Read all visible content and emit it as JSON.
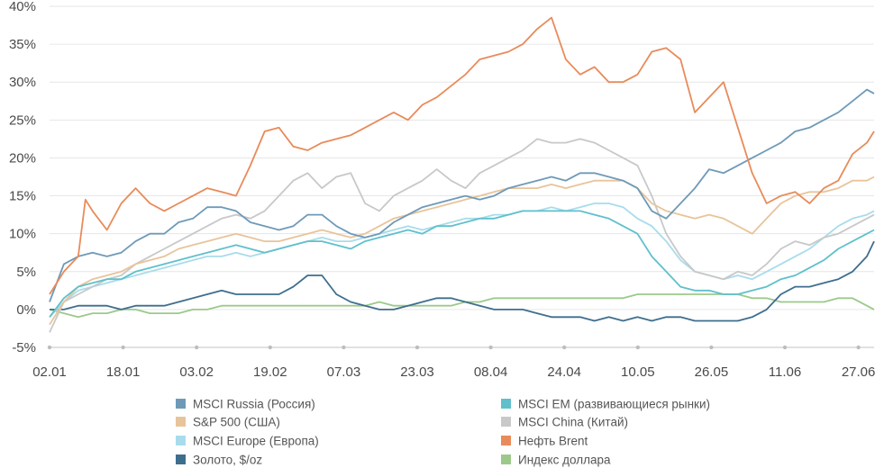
{
  "chart_data": {
    "type": "line",
    "title": "",
    "xlabel": "",
    "ylabel": "",
    "ylim": [
      -5,
      40
    ],
    "y_ticks": [
      -5,
      0,
      5,
      10,
      15,
      20,
      25,
      30,
      35,
      40
    ],
    "y_tick_labels": [
      "-5%",
      "0%",
      "5%",
      "10%",
      "15%",
      "20%",
      "25%",
      "30%",
      "35%",
      "40%"
    ],
    "x_range": [
      0,
      115
    ],
    "x_tick_labels": [
      "02.01",
      "18.01",
      "03.02",
      "19.02",
      "07.03",
      "23.03",
      "08.04",
      "24.04",
      "10.05",
      "26.05",
      "11.06",
      "27.06"
    ],
    "grid": true,
    "legend_position": "bottom",
    "series": [
      {
        "name": "MSCI Russia (Россия)",
        "color": "#6e9ab8",
        "x": [
          0,
          2,
          4,
          6,
          8,
          10,
          12,
          14,
          16,
          18,
          20,
          22,
          24,
          26,
          28,
          30,
          32,
          34,
          36,
          38,
          40,
          42,
          44,
          46,
          48,
          50,
          52,
          54,
          56,
          58,
          60,
          62,
          64,
          66,
          68,
          70,
          72,
          74,
          76,
          78,
          80,
          82,
          84,
          86,
          88,
          90,
          92,
          94,
          96,
          98,
          100,
          102,
          104,
          106,
          108,
          110,
          112,
          114,
          115
        ],
        "values": [
          1,
          6,
          7,
          7.5,
          7,
          7.5,
          9,
          10,
          10,
          11.5,
          12,
          13.5,
          13.5,
          13,
          11.5,
          11,
          10.5,
          11,
          12.5,
          12.5,
          11,
          10,
          9.5,
          10,
          11.5,
          12.5,
          13.5,
          14,
          14.5,
          15,
          14.5,
          15,
          16,
          16.5,
          17,
          17.5,
          17,
          18,
          18,
          17.5,
          17,
          16,
          13,
          12,
          14,
          16,
          18.5,
          18,
          19,
          20,
          21,
          22,
          23.5,
          24,
          25,
          26,
          27.5,
          29,
          28.5
        ]
      },
      {
        "name": "MSCI EM (развивающиеся рынки)",
        "color": "#5fc0cc",
        "x": [
          0,
          2,
          4,
          6,
          8,
          10,
          12,
          14,
          16,
          18,
          20,
          22,
          24,
          26,
          28,
          30,
          32,
          34,
          36,
          38,
          40,
          42,
          44,
          46,
          48,
          50,
          52,
          54,
          56,
          58,
          60,
          62,
          64,
          66,
          68,
          70,
          72,
          74,
          76,
          78,
          80,
          82,
          84,
          86,
          88,
          90,
          92,
          94,
          96,
          98,
          100,
          102,
          104,
          106,
          108,
          110,
          112,
          114,
          115
        ],
        "values": [
          -1,
          1.5,
          3,
          3.5,
          4,
          4,
          5,
          5.5,
          6,
          6.5,
          7,
          7.5,
          8,
          8.5,
          8,
          7.5,
          8,
          8.5,
          9,
          9,
          8.5,
          8,
          9,
          9.5,
          10,
          10.5,
          10,
          11,
          11,
          11.5,
          12,
          12,
          12.5,
          13,
          13,
          13,
          13,
          13,
          12.5,
          12,
          11,
          10,
          7,
          5,
          3,
          2.5,
          2.5,
          2,
          2,
          2.5,
          3,
          4,
          4.5,
          5.5,
          6.5,
          8,
          9,
          10,
          10.5
        ]
      },
      {
        "name": "S&P 500 (США)",
        "color": "#e8c49a",
        "x": [
          0,
          2,
          4,
          6,
          8,
          10,
          12,
          14,
          16,
          18,
          20,
          22,
          24,
          26,
          28,
          30,
          32,
          34,
          36,
          38,
          40,
          42,
          44,
          46,
          48,
          50,
          52,
          54,
          56,
          58,
          60,
          62,
          64,
          66,
          68,
          70,
          72,
          74,
          76,
          78,
          80,
          82,
          84,
          86,
          88,
          90,
          92,
          94,
          96,
          98,
          100,
          102,
          104,
          106,
          108,
          110,
          112,
          114,
          115
        ],
        "values": [
          -2,
          1,
          3,
          4,
          4.5,
          5,
          6,
          6.5,
          7,
          8,
          8.5,
          9,
          9.5,
          10,
          9.5,
          9,
          9,
          9.5,
          10,
          10.5,
          10,
          9.5,
          10,
          11,
          12,
          12.5,
          13,
          13.5,
          14,
          14.5,
          15,
          15.5,
          16,
          16,
          16,
          16.5,
          16,
          16.5,
          17,
          17,
          17,
          16,
          14,
          13,
          12.5,
          12,
          12.5,
          12,
          11,
          10,
          12,
          14,
          15,
          15.5,
          15.5,
          16,
          17,
          17,
          17.5
        ]
      },
      {
        "name": "MSCI China (Китай)",
        "color": "#c8c8c8",
        "x": [
          0,
          2,
          4,
          6,
          8,
          10,
          12,
          14,
          16,
          18,
          20,
          22,
          24,
          26,
          28,
          30,
          32,
          34,
          36,
          38,
          40,
          42,
          44,
          46,
          48,
          50,
          52,
          54,
          56,
          58,
          60,
          62,
          64,
          66,
          68,
          70,
          72,
          74,
          76,
          78,
          80,
          82,
          84,
          86,
          88,
          90,
          92,
          94,
          96,
          98,
          100,
          102,
          104,
          106,
          108,
          110,
          112,
          114,
          115
        ],
        "values": [
          -3,
          1,
          2,
          3,
          4,
          4.5,
          6,
          7,
          8,
          9,
          10,
          11,
          12,
          12.5,
          12,
          13,
          15,
          17,
          18,
          16,
          17.5,
          18,
          14,
          13,
          15,
          16,
          17,
          18.5,
          17,
          16,
          18,
          19,
          20,
          21,
          22.5,
          22,
          22,
          22.5,
          22,
          21,
          20,
          19,
          15,
          10,
          7,
          5,
          4.5,
          4,
          5,
          4.5,
          6,
          8,
          9,
          8.5,
          9.5,
          10,
          11,
          12,
          12.5
        ]
      },
      {
        "name": "MSCI Europe (Европа)",
        "color": "#a8dcec",
        "x": [
          0,
          2,
          4,
          6,
          8,
          10,
          12,
          14,
          16,
          18,
          20,
          22,
          24,
          26,
          28,
          30,
          32,
          34,
          36,
          38,
          40,
          42,
          44,
          46,
          48,
          50,
          52,
          54,
          56,
          58,
          60,
          62,
          64,
          66,
          68,
          70,
          72,
          74,
          76,
          78,
          80,
          82,
          84,
          86,
          88,
          90,
          92,
          94,
          96,
          98,
          100,
          102,
          104,
          106,
          108,
          110,
          112,
          114,
          115
        ],
        "values": [
          -1,
          1,
          2.5,
          3,
          3.5,
          4,
          4.5,
          5,
          5.5,
          6,
          6.5,
          7,
          7,
          7.5,
          7,
          7.5,
          8,
          8.5,
          9,
          9.5,
          9,
          9,
          9.5,
          10,
          10.5,
          11,
          10.5,
          11,
          11.5,
          12,
          12,
          12.5,
          12.5,
          13,
          13,
          13.5,
          13,
          13.5,
          14,
          14,
          13.5,
          12,
          11,
          9,
          6.5,
          5,
          4.5,
          4,
          4.5,
          4,
          5,
          6,
          7,
          8,
          9.5,
          11,
          12,
          12.5,
          13
        ]
      },
      {
        "name": "Нефть Brent",
        "color": "#e88b5a",
        "x": [
          0,
          2,
          4,
          5,
          6,
          8,
          10,
          12,
          14,
          16,
          18,
          20,
          22,
          24,
          26,
          28,
          30,
          32,
          34,
          36,
          38,
          40,
          42,
          44,
          46,
          48,
          50,
          52,
          54,
          56,
          58,
          60,
          62,
          64,
          66,
          68,
          70,
          72,
          74,
          76,
          78,
          80,
          82,
          84,
          86,
          88,
          90,
          92,
          94,
          96,
          98,
          100,
          102,
          104,
          106,
          108,
          110,
          112,
          114,
          115
        ],
        "values": [
          2,
          5,
          7,
          14.5,
          13,
          10.5,
          14,
          16,
          14,
          13,
          14,
          15,
          16,
          15.5,
          15,
          19,
          23.5,
          24,
          21.5,
          21,
          22,
          22.5,
          23,
          24,
          25,
          26,
          25,
          27,
          28,
          29.5,
          31,
          33,
          33.5,
          34,
          35,
          37,
          38.5,
          33,
          31,
          32,
          30,
          30,
          31,
          34,
          34.5,
          33,
          26,
          28,
          30,
          24,
          18,
          14,
          15,
          15.5,
          14,
          16,
          17,
          20.5,
          22,
          23.5
        ]
      },
      {
        "name": "Золото, $/oz",
        "color": "#3e6e8e",
        "x": [
          0,
          2,
          4,
          6,
          8,
          10,
          12,
          14,
          16,
          18,
          20,
          22,
          24,
          26,
          28,
          30,
          32,
          34,
          36,
          38,
          40,
          42,
          44,
          46,
          48,
          50,
          52,
          54,
          56,
          58,
          60,
          62,
          64,
          66,
          68,
          70,
          72,
          74,
          76,
          78,
          80,
          82,
          84,
          86,
          88,
          90,
          92,
          94,
          96,
          98,
          100,
          102,
          104,
          106,
          108,
          110,
          112,
          114,
          115
        ],
        "values": [
          0,
          0,
          0.5,
          0.5,
          0.5,
          0,
          0.5,
          0.5,
          0.5,
          1,
          1.5,
          2,
          2.5,
          2,
          2,
          2,
          2,
          3,
          4.5,
          4.5,
          2,
          1,
          0.5,
          0,
          0,
          0.5,
          1,
          1.5,
          1.5,
          1,
          0.5,
          0,
          0,
          0,
          -0.5,
          -1,
          -1,
          -1,
          -1.5,
          -1,
          -1.5,
          -1,
          -1.5,
          -1,
          -1,
          -1.5,
          -1.5,
          -1.5,
          -1.5,
          -1,
          0,
          2,
          3,
          3,
          3.5,
          4,
          5,
          7,
          9
        ]
      },
      {
        "name": "Индекс доллара",
        "color": "#9cc98a",
        "x": [
          0,
          2,
          4,
          6,
          8,
          10,
          12,
          14,
          16,
          18,
          20,
          22,
          24,
          26,
          28,
          30,
          32,
          34,
          36,
          38,
          40,
          42,
          44,
          46,
          48,
          50,
          52,
          54,
          56,
          58,
          60,
          62,
          64,
          66,
          68,
          70,
          72,
          74,
          76,
          78,
          80,
          82,
          84,
          86,
          88,
          90,
          92,
          94,
          96,
          98,
          100,
          102,
          104,
          106,
          108,
          110,
          112,
          114,
          115
        ],
        "values": [
          0,
          -0.5,
          -1,
          -0.5,
          -0.5,
          0,
          0,
          -0.5,
          -0.5,
          -0.5,
          0,
          0,
          0.5,
          0.5,
          0.5,
          0.5,
          0.5,
          0.5,
          0.5,
          0.5,
          0.5,
          0.5,
          0.5,
          1,
          0.5,
          0.5,
          0.5,
          0.5,
          0.5,
          1,
          1,
          1.5,
          1.5,
          1.5,
          1.5,
          1.5,
          1.5,
          1.5,
          1.5,
          1.5,
          1.5,
          2,
          2,
          2,
          2,
          2,
          2,
          2,
          2,
          1.5,
          1.5,
          1,
          1,
          1,
          1,
          1.5,
          1.5,
          0.5,
          0
        ]
      }
    ],
    "legend_order": [
      0,
      1,
      2,
      3,
      4,
      5,
      6,
      7
    ]
  }
}
